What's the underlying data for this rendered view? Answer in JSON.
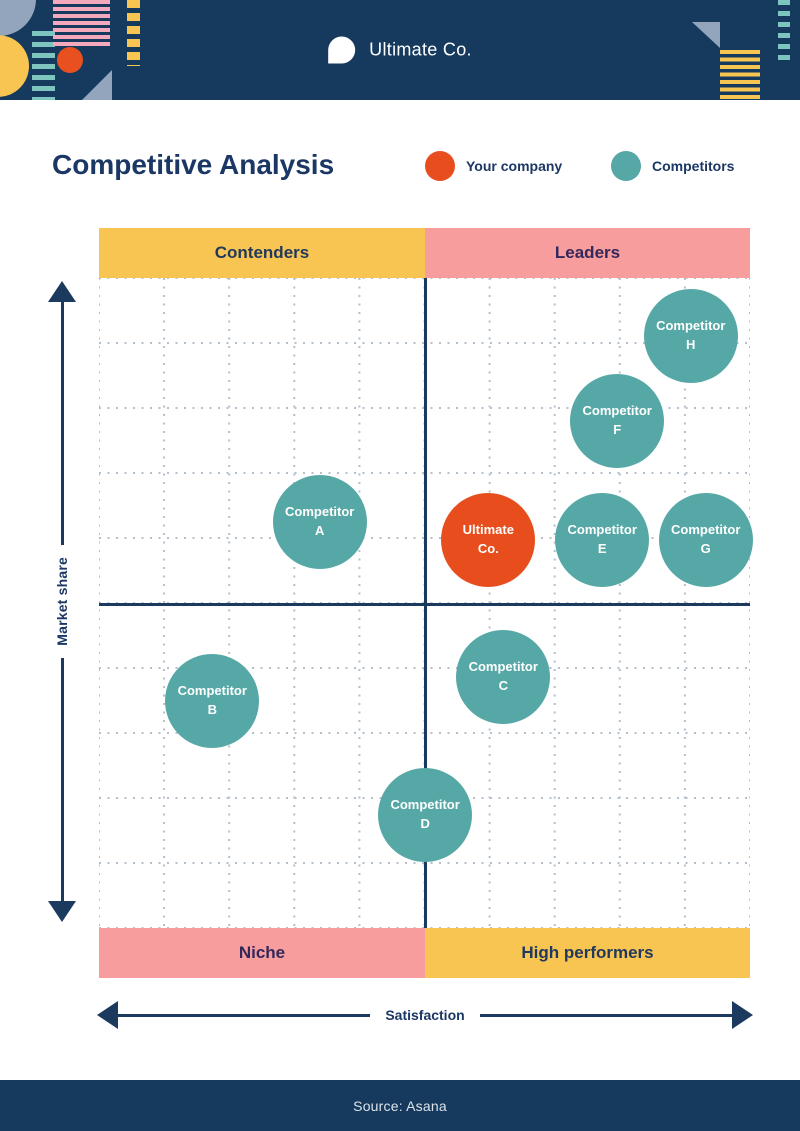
{
  "header": {
    "brand": "Ultimate Co."
  },
  "title": "Competitive Analysis",
  "legend": [
    {
      "label": "Your company",
      "color": "#E84E1D"
    },
    {
      "label": "Competitors",
      "color": "#56A8A6"
    }
  ],
  "quadrants": [
    {
      "position": "top-left",
      "label": "Contenders",
      "bg": "#F8C552",
      "text_color": "#21395C"
    },
    {
      "position": "top-right",
      "label": "Leaders",
      "bg": "#F89D9D",
      "text_color": "#33285C"
    },
    {
      "position": "bottom-left",
      "label": "Niche",
      "bg": "#F89D9D",
      "text_color": "#33285C"
    },
    {
      "position": "bottom-right",
      "label": "High performers",
      "bg": "#F8C552",
      "text_color": "#21395C"
    }
  ],
  "axes": {
    "y": "Market share",
    "x": "Satisfaction"
  },
  "footer": {
    "source": "Source: Asana"
  },
  "colors": {
    "navy": "#163A5E",
    "line_navy": "#1C3A5E",
    "text_navy": "#1B3764",
    "teal": "#56A8A6",
    "orange": "#E84E1D",
    "yellow": "#F8C552",
    "pink": "#F89D9D",
    "grid_dot": "#B3BFCB"
  },
  "chart_data": {
    "type": "scatter",
    "title": "Competitive Analysis",
    "xlabel": "Satisfaction",
    "ylabel": "Market share",
    "xlim": [
      0,
      10
    ],
    "ylim": [
      0,
      10
    ],
    "grid": true,
    "grid_step": 1,
    "bubble_radius_px": 47,
    "quadrant_labels": [
      "Contenders",
      "Leaders",
      "Niche",
      "High performers"
    ],
    "series": [
      {
        "name": "Your company",
        "color": "#E84E1D",
        "points": [
          {
            "label": "Ultimate Co.",
            "label_lines": [
              "Ultimate",
              "Co."
            ],
            "x": 5.98,
            "y": 5.97
          }
        ]
      },
      {
        "name": "Competitors",
        "color": "#56A8A6",
        "points": [
          {
            "label": "Competitor A",
            "label_lines": [
              "Competitor",
              "A"
            ],
            "x": 3.39,
            "y": 6.25
          },
          {
            "label": "Competitor B",
            "label_lines": [
              "Competitor",
              "B"
            ],
            "x": 1.74,
            "y": 3.49
          },
          {
            "label": "Competitor C",
            "label_lines": [
              "Competitor",
              "C"
            ],
            "x": 6.21,
            "y": 3.86
          },
          {
            "label": "Competitor D",
            "label_lines": [
              "Competitor",
              "D"
            ],
            "x": 5.01,
            "y": 1.74
          },
          {
            "label": "Competitor E",
            "label_lines": [
              "Competitor",
              "E"
            ],
            "x": 7.73,
            "y": 5.97
          },
          {
            "label": "Competitor F",
            "label_lines": [
              "Competitor",
              "F"
            ],
            "x": 7.96,
            "y": 7.8
          },
          {
            "label": "Competitor G",
            "label_lines": [
              "Competitor",
              "G"
            ],
            "x": 9.32,
            "y": 5.97
          },
          {
            "label": "Competitor H",
            "label_lines": [
              "Competitor",
              "H"
            ],
            "x": 9.09,
            "y": 9.11
          }
        ]
      }
    ]
  }
}
